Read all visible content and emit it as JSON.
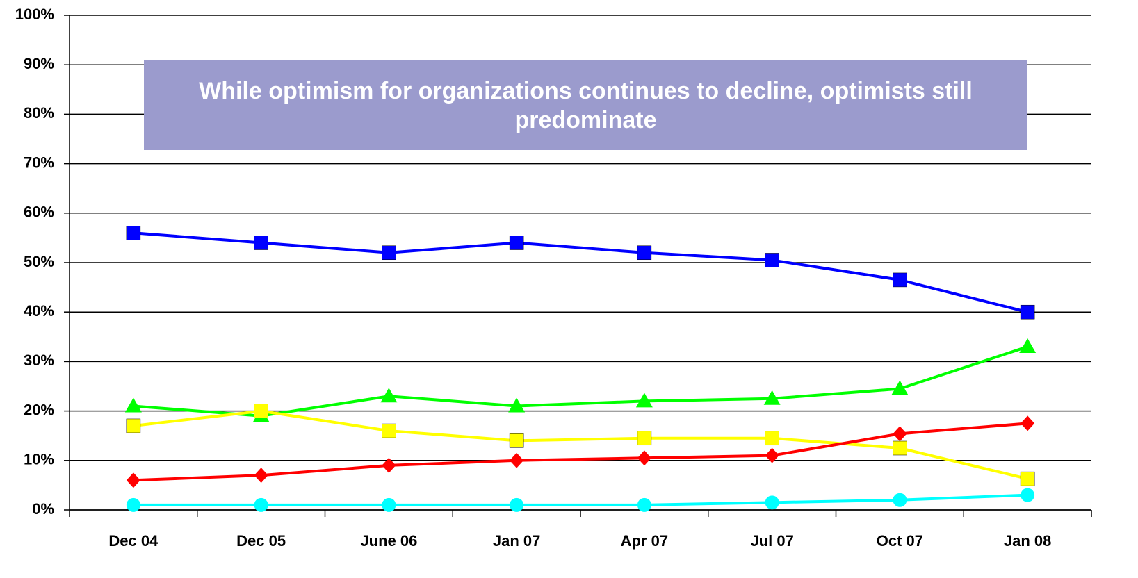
{
  "chart_data": {
    "type": "line",
    "title": "While optimism for organizations continues to decline, optimists still predominate",
    "categories": [
      "Dec 04",
      "Dec 05",
      "June 06",
      "Jan 07",
      "Apr 07",
      "Jul 07",
      "Oct 07",
      "Jan 08"
    ],
    "series": [
      {
        "color": "#0000ff",
        "marker": "square",
        "values": [
          56,
          54,
          52,
          54,
          52,
          50.5,
          46.5,
          40
        ]
      },
      {
        "color": "#00ff00",
        "marker": "triangle",
        "values": [
          21,
          19,
          23,
          21,
          22,
          22.5,
          24.5,
          33
        ]
      },
      {
        "color": "#ffff00",
        "marker": "square",
        "values": [
          17,
          20,
          16,
          14,
          14.5,
          14.5,
          12.5,
          6.3
        ]
      },
      {
        "color": "#ff0000",
        "marker": "diamond",
        "values": [
          6,
          7,
          9,
          10,
          10.5,
          11,
          15.4,
          17.5
        ]
      },
      {
        "color": "#00ffff",
        "marker": "circle",
        "values": [
          1,
          1,
          1,
          1,
          1,
          1.5,
          2,
          3
        ]
      }
    ],
    "ylim": [
      0,
      100
    ],
    "yticks": [
      {
        "value": 0,
        "label": "0%"
      },
      {
        "value": 10,
        "label": "10%"
      },
      {
        "value": 20,
        "label": "20%"
      },
      {
        "value": 30,
        "label": "30%"
      },
      {
        "value": 40,
        "label": "40%"
      },
      {
        "value": 50,
        "label": "50%"
      },
      {
        "value": 60,
        "label": "60%"
      },
      {
        "value": 70,
        "label": "70%"
      },
      {
        "value": 80,
        "label": "80%"
      },
      {
        "value": 90,
        "label": "90%"
      },
      {
        "value": 100,
        "label": "100%"
      }
    ],
    "grid": true
  }
}
